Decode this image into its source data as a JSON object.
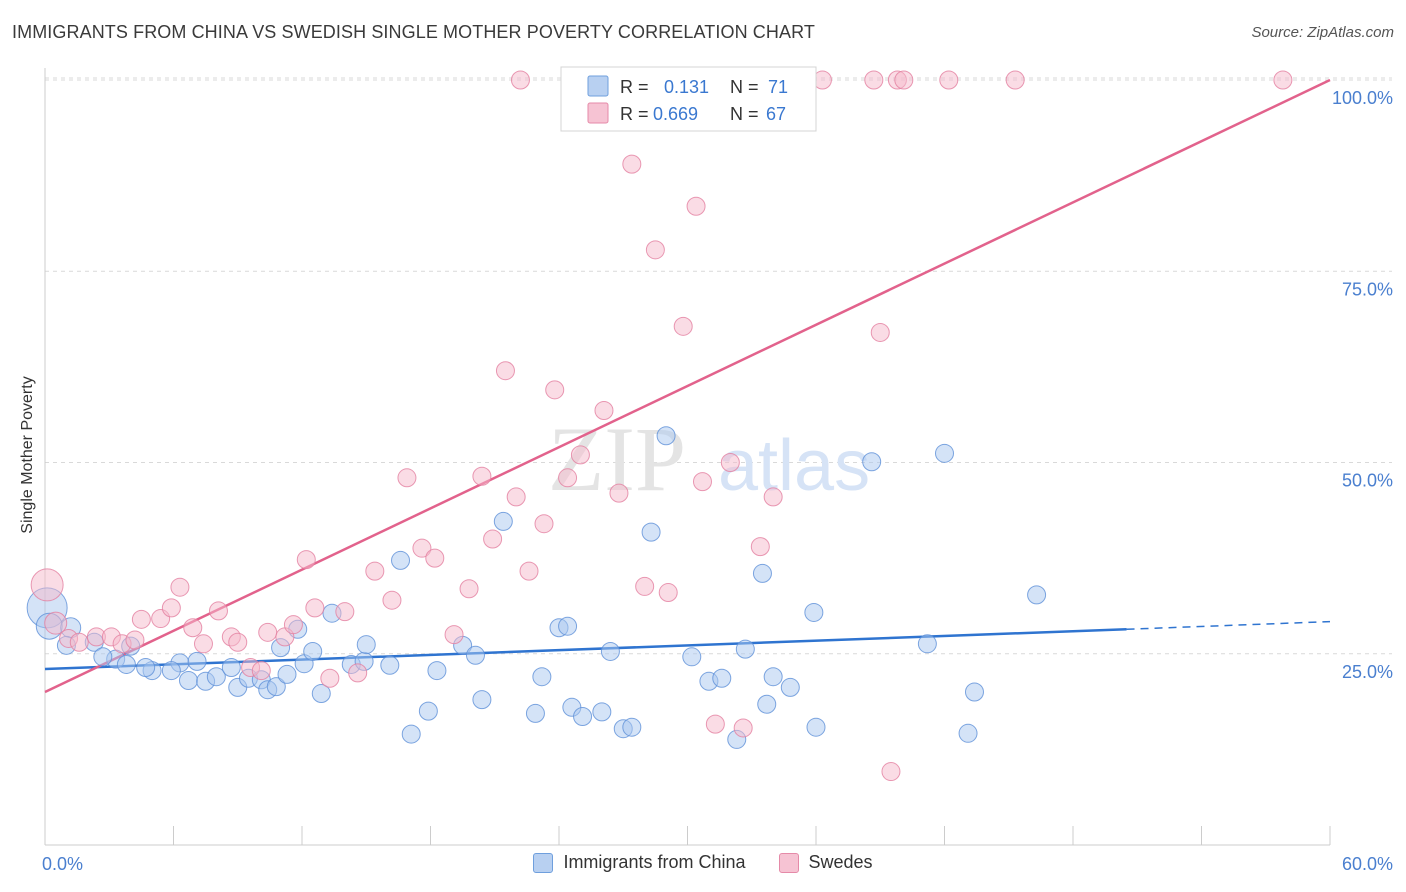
{
  "header": {
    "title": "IMMIGRANTS FROM CHINA VS SWEDISH SINGLE MOTHER POVERTY CORRELATION CHART",
    "source": "Source: ZipAtlas.com"
  },
  "watermark": {
    "zip": "ZIP",
    "atlas": "atlas"
  },
  "colors": {
    "blue_fill": "#a9c7f0",
    "blue_stroke": "#5e90d8",
    "blue_line": "#2f74d0",
    "pink_fill": "#f5b9cc",
    "pink_stroke": "#e47fa0",
    "pink_line": "#e2628c",
    "tick_text": "#4a7fcf",
    "grid": "#d9d9d9"
  },
  "stats_legend": {
    "rows": [
      {
        "r_label": "R =",
        "r_value": "0.131",
        "n_label": "N =",
        "n_value": "71",
        "color": "blue"
      },
      {
        "r_label": "R =",
        "r_value": "0.669",
        "n_label": "N =",
        "n_value": "67",
        "color": "pink"
      }
    ]
  },
  "bottom_legend": {
    "blue": "Immigrants from China",
    "pink": "Swedes"
  },
  "chart_data": {
    "type": "scatter",
    "title": "IMMIGRANTS FROM CHINA VS SWEDISH SINGLE MOTHER POVERTY CORRELATION CHART",
    "xlabel": "",
    "ylabel": "Single Mother Poverty",
    "xlim": [
      0,
      60
    ],
    "ylim": [
      0,
      100
    ],
    "x_tick_labels": [
      "0.0%",
      "60.0%"
    ],
    "y_tick_labels": [
      "25.0%",
      "50.0%",
      "75.0%",
      "100.0%"
    ],
    "y_ticks": [
      25,
      50,
      75,
      100
    ],
    "grid": true,
    "legend_position": "bottom",
    "series": [
      {
        "name": "Immigrants from China",
        "color": "blue",
        "regression": {
          "x": [
            0,
            50.5
          ],
          "y": [
            23.0,
            28.2
          ],
          "dashed_to": [
            60,
            29.2
          ]
        },
        "points": [
          [
            0.1,
            31.0,
            20
          ],
          [
            0.2,
            28.6,
            13
          ],
          [
            1.2,
            28.4,
            10
          ],
          [
            2.3,
            26.5,
            9
          ],
          [
            3.3,
            24.3,
            9
          ],
          [
            2.7,
            24.6,
            9
          ],
          [
            1.0,
            26.1,
            9
          ],
          [
            3.8,
            23.6,
            9
          ],
          [
            5.0,
            22.8,
            9
          ],
          [
            4.0,
            26.0,
            9
          ],
          [
            4.7,
            23.2,
            9
          ],
          [
            6.3,
            23.8,
            9
          ],
          [
            7.1,
            24.0,
            9
          ],
          [
            5.9,
            22.8,
            9
          ],
          [
            6.7,
            21.5,
            9
          ],
          [
            7.5,
            21.4,
            9
          ],
          [
            8.0,
            22.0,
            9
          ],
          [
            8.7,
            23.2,
            9
          ],
          [
            9.0,
            20.6,
            9
          ],
          [
            9.5,
            21.8,
            9
          ],
          [
            10.1,
            21.6,
            9
          ],
          [
            10.4,
            20.3,
            9
          ],
          [
            10.8,
            20.7,
            9
          ],
          [
            11.3,
            22.3,
            9
          ],
          [
            11.0,
            25.8,
            9
          ],
          [
            11.8,
            28.2,
            9
          ],
          [
            12.1,
            23.7,
            9
          ],
          [
            12.5,
            25.3,
            9
          ],
          [
            12.9,
            19.8,
            9
          ],
          [
            13.4,
            30.3,
            9
          ],
          [
            14.3,
            23.6,
            9
          ],
          [
            14.9,
            24.0,
            9
          ],
          [
            15.0,
            26.2,
            9
          ],
          [
            16.1,
            23.5,
            9
          ],
          [
            16.6,
            37.2,
            9
          ],
          [
            17.1,
            14.5,
            9
          ],
          [
            17.9,
            17.5,
            9
          ],
          [
            18.3,
            22.8,
            9
          ],
          [
            19.5,
            26.1,
            9
          ],
          [
            20.1,
            24.8,
            9
          ],
          [
            20.4,
            19.0,
            9
          ],
          [
            21.4,
            42.3,
            9
          ],
          [
            22.9,
            17.2,
            9
          ],
          [
            23.2,
            22.0,
            9
          ],
          [
            24.0,
            28.4,
            9
          ],
          [
            24.4,
            28.6,
            9
          ],
          [
            24.6,
            18.0,
            9
          ],
          [
            25.1,
            16.8,
            9
          ],
          [
            26.0,
            17.4,
            9
          ],
          [
            26.4,
            25.3,
            9
          ],
          [
            27.0,
            15.2,
            9
          ],
          [
            27.4,
            15.4,
            9
          ],
          [
            28.3,
            40.9,
            9
          ],
          [
            29.0,
            53.5,
            9
          ],
          [
            30.2,
            24.6,
            9
          ],
          [
            31.0,
            21.4,
            9
          ],
          [
            31.6,
            21.8,
            9
          ],
          [
            32.3,
            13.8,
            9
          ],
          [
            32.7,
            25.6,
            9
          ],
          [
            33.5,
            35.5,
            9
          ],
          [
            33.7,
            18.4,
            9
          ],
          [
            34.0,
            22.0,
            9
          ],
          [
            34.8,
            20.6,
            9
          ],
          [
            35.9,
            30.4,
            9
          ],
          [
            36.0,
            15.4,
            9
          ],
          [
            38.6,
            50.1,
            9
          ],
          [
            42.0,
            51.2,
            9
          ],
          [
            43.1,
            14.6,
            9
          ],
          [
            43.4,
            20.0,
            9
          ],
          [
            41.2,
            26.3,
            9
          ],
          [
            46.3,
            32.7,
            9
          ]
        ]
      },
      {
        "name": "Swedes",
        "color": "pink",
        "regression": {
          "x": [
            0,
            60
          ],
          "y": [
            20.0,
            100.0
          ]
        },
        "points": [
          [
            0.1,
            34.0,
            16
          ],
          [
            0.5,
            29.0,
            11
          ],
          [
            1.1,
            27.0,
            9
          ],
          [
            1.6,
            26.5,
            9
          ],
          [
            2.4,
            27.2,
            9
          ],
          [
            3.1,
            27.2,
            9
          ],
          [
            3.6,
            26.3,
            9
          ],
          [
            4.2,
            26.8,
            9
          ],
          [
            4.5,
            29.5,
            9
          ],
          [
            5.4,
            29.6,
            9
          ],
          [
            5.9,
            31.0,
            9
          ],
          [
            6.3,
            33.7,
            9
          ],
          [
            6.9,
            28.4,
            9
          ],
          [
            7.4,
            26.3,
            9
          ],
          [
            8.1,
            30.6,
            9
          ],
          [
            8.7,
            27.2,
            9
          ],
          [
            9.0,
            26.5,
            9
          ],
          [
            9.6,
            23.2,
            9
          ],
          [
            10.1,
            22.8,
            9
          ],
          [
            10.4,
            27.8,
            9
          ],
          [
            11.2,
            27.2,
            9
          ],
          [
            11.6,
            28.8,
            9
          ],
          [
            12.2,
            37.3,
            9
          ],
          [
            12.6,
            31.0,
            9
          ],
          [
            13.3,
            21.8,
            9
          ],
          [
            14.0,
            30.5,
            9
          ],
          [
            14.6,
            22.5,
            9
          ],
          [
            15.4,
            35.8,
            9
          ],
          [
            16.2,
            32.0,
            9
          ],
          [
            16.9,
            48.0,
            9
          ],
          [
            17.6,
            38.8,
            9
          ],
          [
            18.2,
            37.5,
            9
          ],
          [
            19.1,
            27.5,
            9
          ],
          [
            19.8,
            33.5,
            9
          ],
          [
            20.4,
            48.2,
            9
          ],
          [
            20.9,
            40.0,
            9
          ],
          [
            21.5,
            62.0,
            9
          ],
          [
            22.0,
            45.5,
            9
          ],
          [
            22.6,
            35.8,
            9
          ],
          [
            23.3,
            42.0,
            9
          ],
          [
            23.8,
            59.5,
            9
          ],
          [
            24.4,
            48.0,
            9
          ],
          [
            25.0,
            51.0,
            9
          ],
          [
            26.1,
            56.8,
            9
          ],
          [
            26.8,
            46.0,
            9
          ],
          [
            27.4,
            89.0,
            9
          ],
          [
            28.0,
            33.8,
            9
          ],
          [
            28.5,
            77.8,
            9
          ],
          [
            29.1,
            33.0,
            9
          ],
          [
            29.8,
            67.8,
            9
          ],
          [
            30.4,
            83.5,
            9
          ],
          [
            30.7,
            47.5,
            9
          ],
          [
            31.3,
            15.8,
            9
          ],
          [
            32.0,
            50.0,
            9
          ],
          [
            32.6,
            15.3,
            9
          ],
          [
            33.4,
            39.0,
            9
          ],
          [
            34.0,
            45.5,
            9
          ],
          [
            36.3,
            100.0,
            9
          ],
          [
            38.7,
            100.0,
            9
          ],
          [
            39.0,
            67.0,
            9
          ],
          [
            39.5,
            9.6,
            9
          ],
          [
            39.8,
            100.0,
            9
          ],
          [
            40.1,
            100.0,
            9
          ],
          [
            42.2,
            100.0,
            9
          ],
          [
            45.3,
            100.0,
            9
          ],
          [
            57.8,
            100.0,
            9
          ],
          [
            22.2,
            100.0,
            9
          ]
        ]
      }
    ]
  }
}
